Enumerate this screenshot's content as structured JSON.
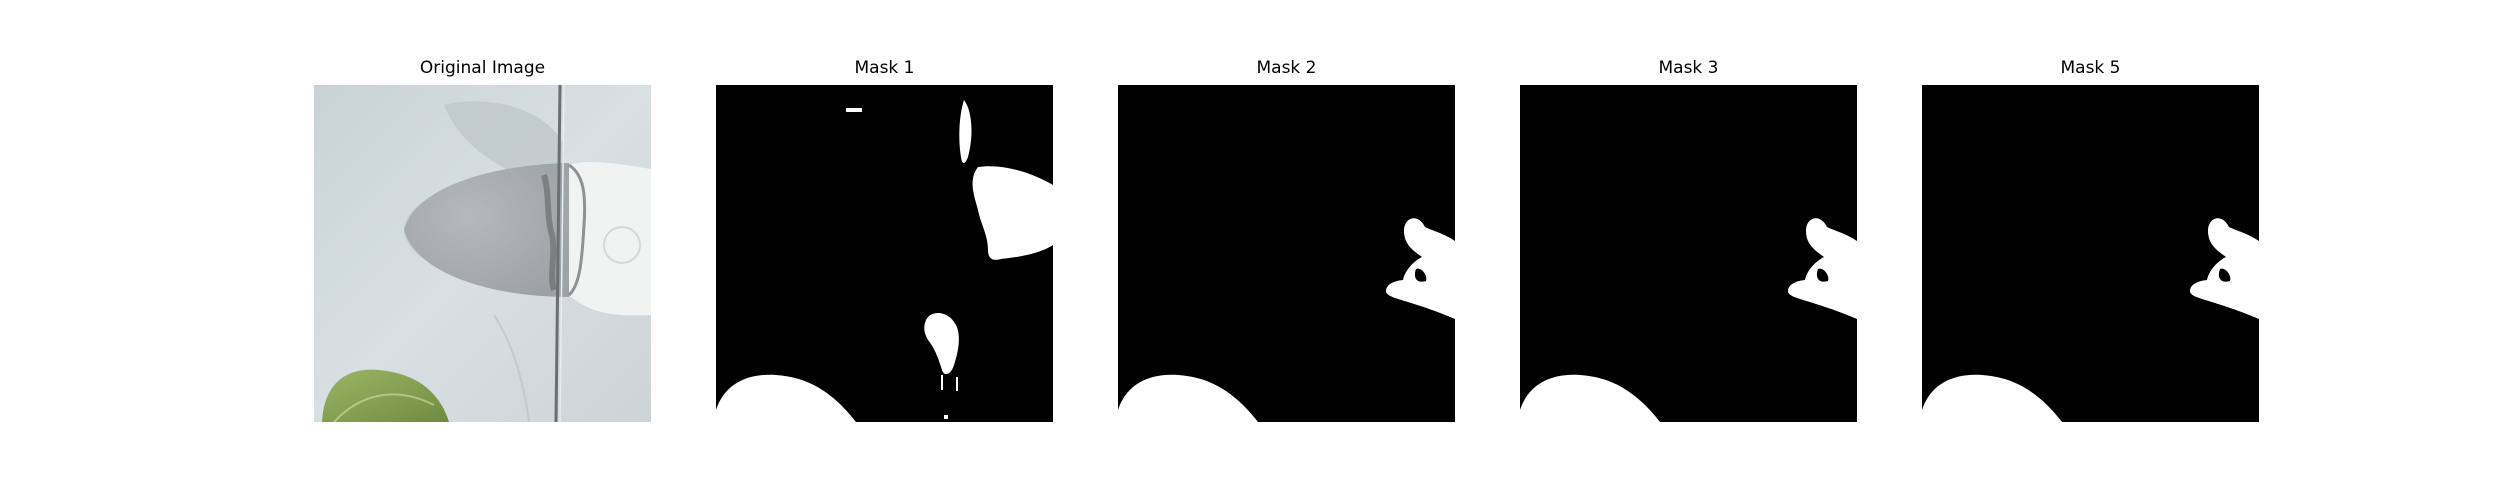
{
  "figure": {
    "panels": [
      {
        "title": "Original Image",
        "kind": "photo"
      },
      {
        "title": "Mask 1",
        "kind": "mask"
      },
      {
        "title": "Mask 2",
        "kind": "mask"
      },
      {
        "title": "Mask 3",
        "kind": "mask"
      },
      {
        "title": "Mask 5",
        "kind": "mask"
      }
    ]
  },
  "colors": {
    "mask_background": "#000000",
    "mask_foreground": "#ffffff",
    "car_body": "#d3dbe0",
    "shadow": "#a7adb0",
    "leaf": "#8aa656"
  }
}
